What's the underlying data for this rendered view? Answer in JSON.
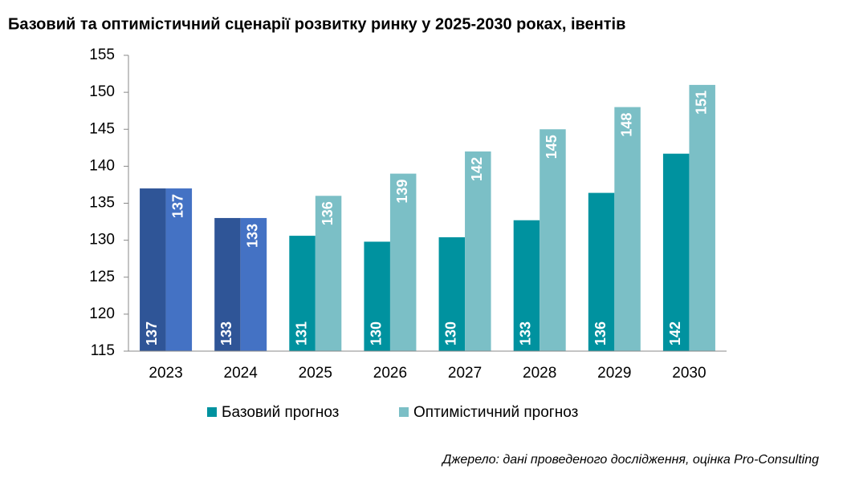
{
  "chart_data": {
    "type": "bar",
    "title": "Базовий та оптимістичний сценарії розвитку ринку у 2025-2030 роках, івентів",
    "source": "Джерело: дані проведеного дослідження, оцінка Pro-Consulting",
    "categories": [
      "2023",
      "2024",
      "2025",
      "2026",
      "2027",
      "2028",
      "2029",
      "2030"
    ],
    "series": [
      {
        "name": "Базовий прогноз",
        "color": "#00929f",
        "colors": [
          "#2f5597",
          "#2f5597",
          "#00929f",
          "#00929f",
          "#00929f",
          "#00929f",
          "#00929f",
          "#00929f"
        ],
        "values": [
          137,
          133,
          130.6,
          129.8,
          130.4,
          132.7,
          136.4,
          141.7
        ],
        "value_labels": [
          "137",
          "133",
          "131",
          "130",
          "130",
          "133",
          "136",
          "142"
        ]
      },
      {
        "name": "Оптимістичний прогноз",
        "color": "#7bbfc6",
        "colors": [
          "#4472c4",
          "#4472c4",
          "#7bbfc6",
          "#7bbfc6",
          "#7bbfc6",
          "#7bbfc6",
          "#7bbfc6",
          "#7bbfc6"
        ],
        "values": [
          137,
          133,
          136,
          139,
          142,
          145,
          148,
          151
        ]
      }
    ],
    "ylim": [
      115,
      155
    ],
    "yticks": [
      115,
      120,
      125,
      130,
      135,
      140,
      145,
      150,
      155
    ],
    "grid": false
  }
}
